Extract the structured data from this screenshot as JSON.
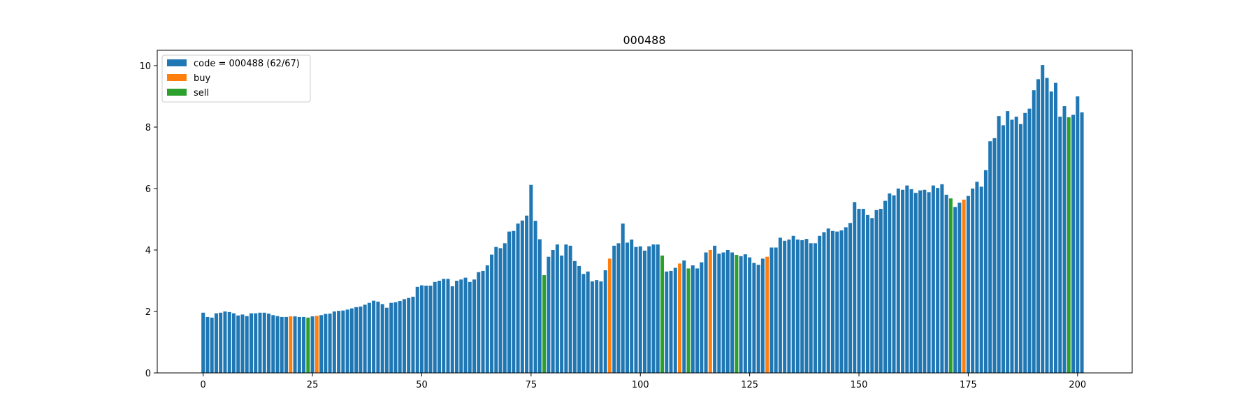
{
  "chart_data": {
    "type": "bar",
    "title": "000488",
    "xlabel": "",
    "ylabel": "",
    "xlim": [
      -10.5,
      212.5
    ],
    "ylim": [
      0,
      10.5
    ],
    "x_ticks": [
      0,
      25,
      50,
      75,
      100,
      125,
      150,
      175,
      200
    ],
    "y_ticks": [
      0,
      2,
      4,
      6,
      8,
      10
    ],
    "legend_position": "top-left",
    "colors": {
      "price": "#1f77b4",
      "buy": "#ff7f0e",
      "sell": "#2ca02c"
    },
    "series": [
      {
        "name": "code = 000488 (62/67)",
        "color_key": "price"
      },
      {
        "name": "buy",
        "color_key": "buy"
      },
      {
        "name": "sell",
        "color_key": "sell"
      }
    ],
    "values": [
      1.96,
      1.82,
      1.8,
      1.94,
      1.96,
      2.0,
      1.98,
      1.94,
      1.87,
      1.9,
      1.85,
      1.94,
      1.94,
      1.96,
      1.96,
      1.93,
      1.88,
      1.85,
      1.82,
      1.82,
      1.84,
      1.84,
      1.82,
      1.82,
      1.8,
      1.84,
      1.86,
      1.88,
      1.92,
      1.93,
      2.0,
      2.02,
      2.03,
      2.06,
      2.1,
      2.14,
      2.16,
      2.22,
      2.28,
      2.35,
      2.32,
      2.24,
      2.12,
      2.28,
      2.3,
      2.34,
      2.4,
      2.44,
      2.48,
      2.8,
      2.85,
      2.84,
      2.84,
      2.96,
      3.0,
      3.06,
      3.06,
      2.82,
      3.0,
      3.04,
      3.1,
      2.96,
      3.04,
      3.28,
      3.32,
      3.5,
      3.85,
      4.1,
      4.06,
      4.22,
      4.6,
      4.62,
      4.86,
      4.96,
      5.12,
      6.12,
      4.95,
      4.35,
      3.18,
      3.78,
      4.0,
      4.18,
      3.82,
      4.18,
      4.14,
      3.64,
      3.48,
      3.22,
      3.3,
      2.98,
      3.02,
      2.98,
      3.34,
      3.72,
      4.14,
      4.22,
      4.86,
      4.24,
      4.34,
      4.1,
      4.12,
      3.98,
      4.12,
      4.18,
      4.18,
      3.82,
      3.3,
      3.32,
      3.42,
      3.56,
      3.66,
      3.4,
      3.5,
      3.4,
      3.6,
      3.92,
      4.0,
      4.14,
      3.88,
      3.92,
      4.0,
      3.92,
      3.84,
      3.8,
      3.86,
      3.76,
      3.58,
      3.52,
      3.72,
      3.78,
      4.08,
      4.08,
      4.4,
      4.3,
      4.34,
      4.46,
      4.34,
      4.32,
      4.36,
      4.22,
      4.22,
      4.46,
      4.58,
      4.7,
      4.62,
      4.6,
      4.64,
      4.74,
      4.88,
      5.56,
      5.34,
      5.34,
      5.14,
      5.04,
      5.3,
      5.34,
      5.6,
      5.84,
      5.78,
      6.0,
      5.96,
      6.1,
      5.98,
      5.86,
      5.94,
      5.96,
      5.88,
      6.1,
      6.02,
      6.14,
      5.8,
      5.68,
      5.4,
      5.54,
      5.64,
      5.76,
      6.0,
      6.22,
      6.06,
      6.6,
      7.54,
      7.64,
      8.36,
      8.06,
      8.52,
      8.24,
      8.34,
      8.1,
      8.46,
      8.6,
      9.2,
      9.56,
      10.02,
      9.6,
      9.16,
      9.44,
      8.34,
      8.68,
      8.32,
      8.4,
      9.0,
      8.48
    ],
    "buy_indices": [
      20,
      26,
      93,
      109,
      116,
      129,
      174
    ],
    "sell_indices": [
      24,
      78,
      105,
      111,
      122,
      171,
      198
    ]
  }
}
